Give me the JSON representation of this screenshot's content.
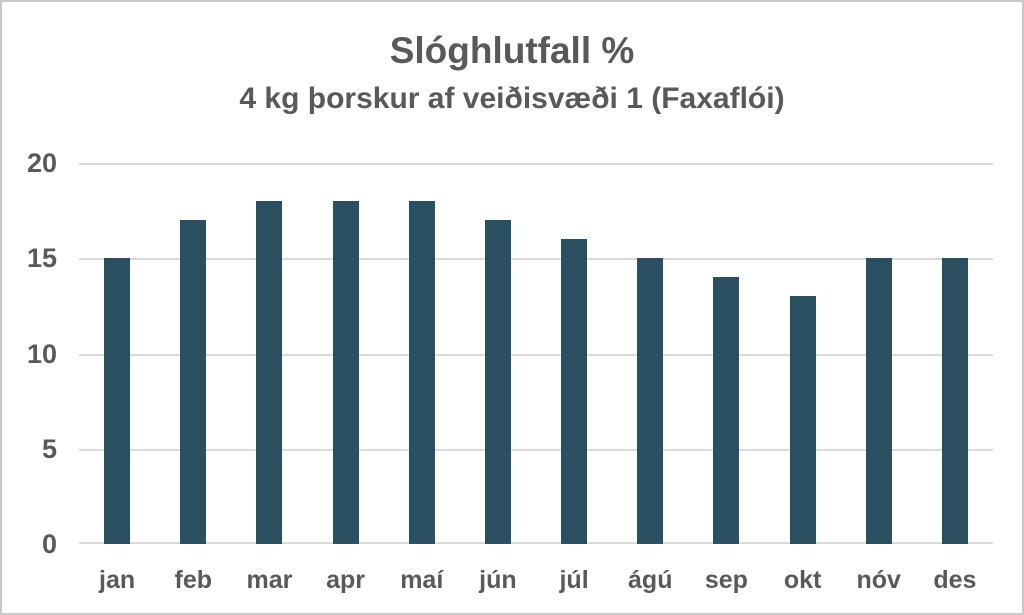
{
  "chart_data": {
    "type": "bar",
    "title": "Slóghlutfall %",
    "subtitle": "4 kg þorskur af veiðisvæði 1 (Faxaflói)",
    "categories": [
      "jan",
      "feb",
      "mar",
      "apr",
      "maí",
      "jún",
      "júl",
      "ágú",
      "sep",
      "okt",
      "nóv",
      "des"
    ],
    "values": [
      15,
      17,
      18,
      18,
      18,
      17,
      16,
      15,
      14,
      13,
      15,
      15
    ],
    "xlabel": "",
    "ylabel": "",
    "ylim": [
      0,
      20
    ],
    "yticks": [
      0,
      5,
      10,
      15,
      20
    ],
    "grid": true,
    "legend_position": "none",
    "colors": {
      "bar": "#2A4F60",
      "gridline": "#D9D9D9",
      "text": "#595959",
      "background": "#FFFFFF",
      "frame_border": "#C9C9C9"
    }
  }
}
